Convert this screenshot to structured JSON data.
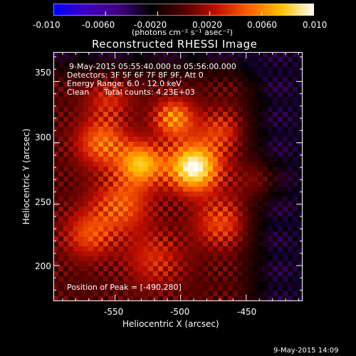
{
  "chart_data": {
    "type": "heatmap",
    "title": "Reconstructed RHESSI Image",
    "colorbar": {
      "ticks": [
        "-0.010",
        "-0.0060",
        "-0.0020",
        "0.0020",
        "0.0060",
        "0.010"
      ],
      "unit_label": "(photons cm⁻² s⁻¹ asec⁻²)",
      "range": [
        -0.01,
        0.01
      ],
      "colors": [
        "#0000ff",
        "#4000c0",
        "#400080",
        "#000000",
        "#500000",
        "#c01000",
        "#ff6000",
        "#ffc000",
        "#ffffff"
      ]
    },
    "xlabel": "Heliocentric X (arcsec)",
    "ylabel": "Heliocentric Y (arcsec)",
    "xticks": [
      -550,
      -500,
      -450
    ],
    "yticks": [
      200,
      250,
      300,
      350
    ],
    "xlim": [
      -597,
      -407
    ],
    "ylim": [
      171,
      374
    ],
    "annotations": [
      "9-May-2015 05:55:40.000 to 05:56:00.000",
      "Detectors: 3F 5F 6F 7F 8F 9F, Att 0",
      "Energy Range: 6.0 - 12.0 keV",
      "Clean",
      "Total counts: 4.23E+03"
    ],
    "peak_label": "Position of Peak = [-490,280]",
    "peak": [
      -490,
      280
    ],
    "sources": [
      {
        "x": -490,
        "y": 280,
        "amp": 0.01,
        "sigma": 14
      },
      {
        "x": -530,
        "y": 283,
        "amp": 0.0072,
        "sigma": 12
      },
      {
        "x": -505,
        "y": 320,
        "amp": 0.006,
        "sigma": 11
      },
      {
        "x": -560,
        "y": 300,
        "amp": 0.0052,
        "sigma": 14
      },
      {
        "x": -545,
        "y": 250,
        "amp": 0.0046,
        "sigma": 16
      },
      {
        "x": -570,
        "y": 225,
        "amp": 0.004,
        "sigma": 14
      },
      {
        "x": -470,
        "y": 235,
        "amp": 0.004,
        "sigma": 14
      },
      {
        "x": -520,
        "y": 205,
        "amp": 0.0032,
        "sigma": 16
      },
      {
        "x": -470,
        "y": 310,
        "amp": 0.0034,
        "sigma": 12
      },
      {
        "x": -555,
        "y": 335,
        "amp": 0.003,
        "sigma": 12
      },
      {
        "x": -440,
        "y": 270,
        "amp": 0.0026,
        "sigma": 12
      }
    ],
    "background": {
      "level": -0.0032,
      "east_edge_x": -460
    }
  },
  "timestamp": "9-May-2015 14:09"
}
